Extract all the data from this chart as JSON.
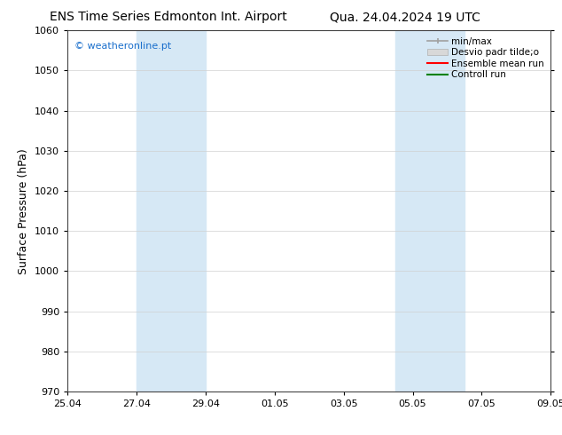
{
  "title_left": "ENS Time Series Edmonton Int. Airport",
  "title_right": "Qua. 24.04.2024 19 UTC",
  "ylabel": "Surface Pressure (hPa)",
  "ylim": [
    970,
    1060
  ],
  "yticks": [
    970,
    980,
    990,
    1000,
    1010,
    1020,
    1030,
    1040,
    1050,
    1060
  ],
  "xtick_labels": [
    "25.04",
    "27.04",
    "29.04",
    "01.05",
    "03.05",
    "05.05",
    "07.05",
    "09.05"
  ],
  "xtick_positions": [
    0,
    2,
    4,
    6,
    8,
    10,
    12,
    14
  ],
  "xlim": [
    0,
    14
  ],
  "shaded_bands": [
    {
      "x_start": 2,
      "x_end": 4
    },
    {
      "x_start": 9.5,
      "x_end": 11.5
    }
  ],
  "shade_color": "#d6e8f5",
  "copyright_text": "© weatheronline.pt",
  "copyright_color": "#1a6fcc",
  "legend_labels": [
    "min/max",
    "Desvio padr tilde;o",
    "Ensemble mean run",
    "Controll run"
  ],
  "legend_colors": [
    "#a0a0a0",
    "#c8c8c8",
    "#ff0000",
    "#008000"
  ],
  "background_color": "#ffffff",
  "grid_color": "#d0d0d0",
  "title_fontsize": 10,
  "ylabel_fontsize": 9,
  "tick_fontsize": 8,
  "legend_fontsize": 7.5,
  "copyright_fontsize": 8
}
